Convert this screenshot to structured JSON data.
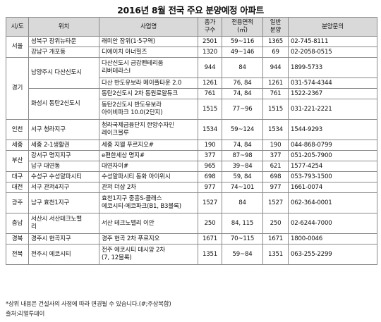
{
  "title": "2016년 8월 전국 주요 분양예정 아파트",
  "headers": {
    "region": "시/도",
    "location": "위치",
    "project": "사업명",
    "total_units_line1": "총가",
    "total_units_line2": "구수",
    "area_line1": "전용면적",
    "area_line2": "(㎡)",
    "general_line1": "일반",
    "general_line2": "분양",
    "inquiry": "분양문의"
  },
  "regions": {
    "seoul": "서울",
    "gyeonggi": "경기",
    "incheon": "인천",
    "sejong": "세종",
    "busan": "부산",
    "daegu": "대구",
    "daejeon": "대전",
    "gwangju": "광주",
    "chungnam": "충남",
    "gyeongbuk": "경북",
    "jeonbuk": "전북"
  },
  "locations": {
    "l1": "성북구 장위뉴타운",
    "l2": "강남구 개포동",
    "l3": "남양주시 다산신도시",
    "l4": "화성시 동탄2신도시",
    "l5": "서구 청라지구",
    "l6": "세종 2-1생활권",
    "l7": "강서구 명지지구",
    "l8": "남구 대연동",
    "l9": "수성구 수성알파시티",
    "l10": "서구 관저4지구",
    "l11": "남구 효천1지구",
    "l12a": "서산시 서산테크노밸",
    "l12b": "리",
    "l13": "경주시 현곡지구",
    "l14": "전주시 에코시티"
  },
  "rows": [
    {
      "project": "래미안 장위(1·5구역)",
      "units": "2501",
      "area": "59~116",
      "general": "1365",
      "phone": "02-745-8111"
    },
    {
      "project": "디에이치 아너힐즈",
      "units": "1320",
      "area": "49~146",
      "general": "69",
      "phone": "02-2058-0515"
    },
    {
      "project_a": "다산신도시 금강펜테리움",
      "project_b": "리버테라스Ⅰ",
      "units": "944",
      "area": "84",
      "general": "944",
      "phone": "1899-5733"
    },
    {
      "project": "다산 반도유보라 메이플타운 2.0",
      "units": "1261",
      "area": "76, 84",
      "general": "1261",
      "phone": "031-574-4344"
    },
    {
      "project": "동탄2신도시 2차 동원로얄듀크",
      "units": "761",
      "area": "74, 84",
      "general": "761",
      "phone": "1522-2367"
    },
    {
      "project_a": "동탄2신도시 반도유보라",
      "project_b": "아이비파크 10.0(2단지)",
      "units": "1515",
      "area": "77~96",
      "general": "1515",
      "phone": "031-221-2221"
    },
    {
      "project_a": "청라국제금융단지 한양수자인",
      "project_b": "레이크블루",
      "units": "1534",
      "area": "59~124",
      "general": "1534",
      "phone": "1544-9293"
    },
    {
      "project": "세종 지웰 푸르지오#",
      "units": "190",
      "area": "74, 84",
      "general": "190",
      "phone": "044-868-0799"
    },
    {
      "project": "e편한세상 명지#",
      "units": "377",
      "area": "87~98",
      "general": "377",
      "phone": "051-205-7900"
    },
    {
      "project": "대연자이#",
      "units": "965",
      "area": "39~84",
      "general": "621",
      "phone": "1577-4254"
    },
    {
      "project": "수성알파시티 동화 아이위시",
      "units": "698",
      "area": "59, 84",
      "general": "698",
      "phone": "053-793-1500"
    },
    {
      "project": "관저 더샵 2차",
      "units": "977",
      "area": "74~101",
      "general": "977",
      "phone": "1661-0074"
    },
    {
      "project_a": "효천1지구 중흥S-클래스",
      "project_b": "에코시티·에코파크(B1, B3블록)",
      "units": "1527",
      "area": "84",
      "general": "1527",
      "phone": "062-364-0001"
    },
    {
      "project": "서산 테크노밸리 이안",
      "units": "250",
      "area": "84, 115",
      "general": "250",
      "phone": "02-6244-7000"
    },
    {
      "project": "경주 현곡 2차 푸르지오",
      "units": "1671",
      "area": "70~115",
      "general": "1671",
      "phone": "1800-0046"
    },
    {
      "project_a": "전주 에코시티 데시앙 2차",
      "project_b": "(7, 12블록)",
      "units": "1351",
      "area": "59~84",
      "general": "1351",
      "phone": "063-255-2299"
    }
  ],
  "notes": {
    "note": "*상위 내용은 건설사의 사정에 따라 변경될 수 있습니다.(#;주상복합)",
    "source": "출처:리얼투데이"
  }
}
